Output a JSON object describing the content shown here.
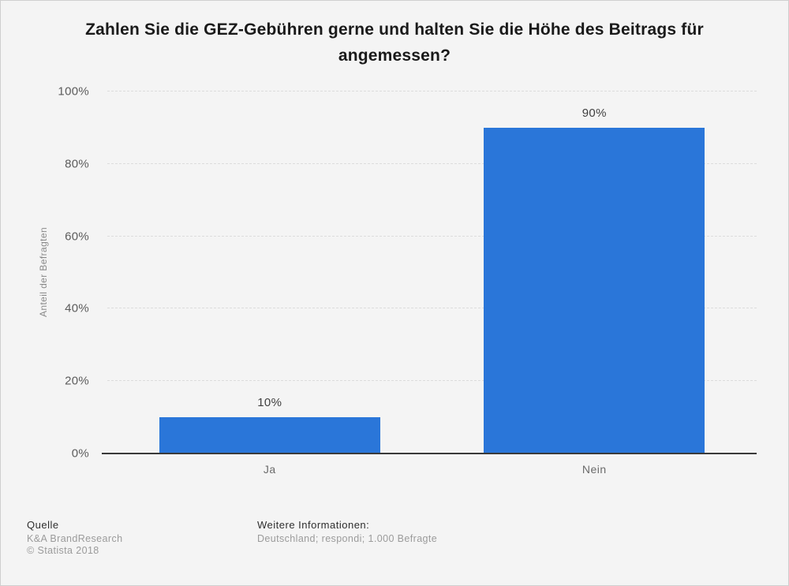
{
  "chart_data": {
    "type": "bar",
    "title": "Zahlen Sie die GEZ-Gebühren gerne und halten Sie die Höhe des Beitrags für angemessen?",
    "categories": [
      "Ja",
      "Nein"
    ],
    "values": [
      10,
      90
    ],
    "value_labels": [
      "10%",
      "90%"
    ],
    "xlabel": "",
    "ylabel": "Anteil der Befragten",
    "ylim": [
      0,
      100
    ],
    "yticks": [
      0,
      20,
      40,
      60,
      80,
      100
    ],
    "ytick_labels": [
      "0%",
      "20%",
      "40%",
      "60%",
      "80%",
      "100%"
    ],
    "grid": "horizontal-dashed",
    "legend": "none",
    "bar_color": "#2a76d9"
  },
  "footer": {
    "source_label": "Quelle",
    "source_name": "K&A BrandResearch",
    "copyright": "© Statista 2018",
    "info_label": "Weitere Informationen:",
    "info_text": "Deutschland; respondi; 1.000 Befragte"
  },
  "colors": {
    "background": "#f4f4f4",
    "bar": "#2a76d9",
    "axis": "#3a3a3a",
    "gridline": "#dcdcdc",
    "text_primary": "#1a1a1a",
    "text_secondary": "#5c5c5c",
    "text_muted": "#9b9b9b"
  }
}
